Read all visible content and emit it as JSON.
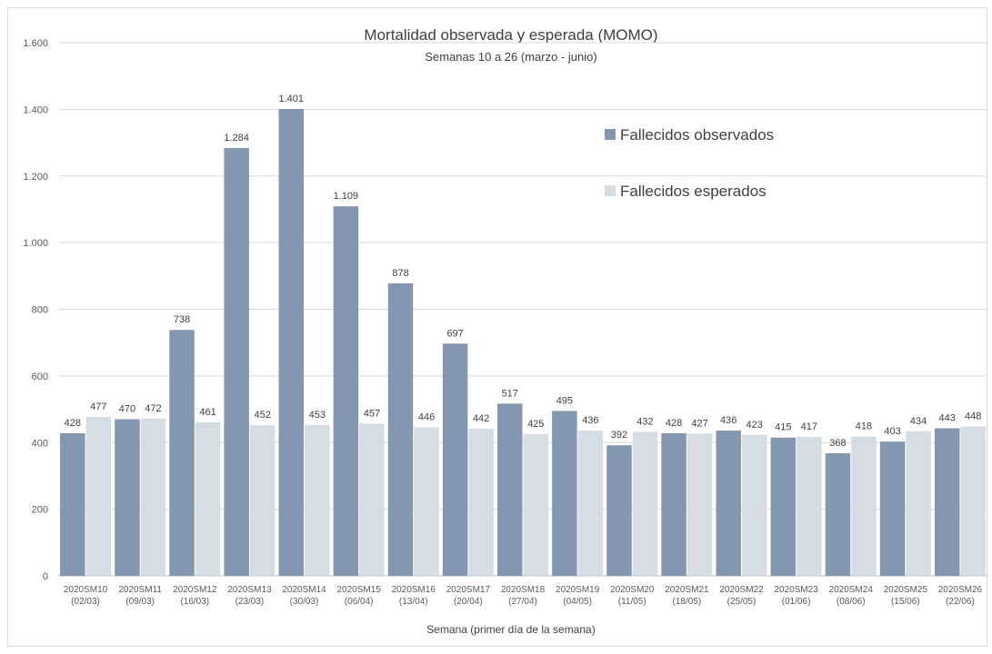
{
  "chart_data": {
    "type": "bar",
    "title": "Mortalidad observada y esperada (MOMO)",
    "subtitle": "Semanas 10 a 26 (marzo - junio)",
    "xlabel": "Semana (primer día de la semana)",
    "ylabel": "",
    "ylim": [
      0,
      1600
    ],
    "yticks": [
      0,
      200,
      400,
      600,
      800,
      1000,
      1200,
      1400,
      1600
    ],
    "ytick_labels": [
      "0",
      "200",
      "400",
      "600",
      "800",
      "1.000",
      "1.200",
      "1.400",
      "1.600"
    ],
    "grid": true,
    "legend_position": "top-right",
    "categories": [
      {
        "week": "2020SM10",
        "date": "(02/03)"
      },
      {
        "week": "2020SM11",
        "date": "(09/03)"
      },
      {
        "week": "2020SM12",
        "date": "(16/03)"
      },
      {
        "week": "2020SM13",
        "date": "(23/03)"
      },
      {
        "week": "2020SM14",
        "date": "(30/03)"
      },
      {
        "week": "2020SM15",
        "date": "(06/04)"
      },
      {
        "week": "2020SM16",
        "date": "(13/04)"
      },
      {
        "week": "2020SM17",
        "date": "(20/04)"
      },
      {
        "week": "2020SM18",
        "date": "(27/04)"
      },
      {
        "week": "2020SM19",
        "date": "(04/05)"
      },
      {
        "week": "2020SM20",
        "date": "(11/05)"
      },
      {
        "week": "2020SM21",
        "date": "(18/05)"
      },
      {
        "week": "2020SM22",
        "date": "(25/05)"
      },
      {
        "week": "2020SM23",
        "date": "(01/06)"
      },
      {
        "week": "2020SM24",
        "date": "(08/06)"
      },
      {
        "week": "2020SM25",
        "date": "(15/06)"
      },
      {
        "week": "2020SM26",
        "date": "(22/06)"
      }
    ],
    "series": [
      {
        "name": "Fallecidos observados",
        "color": "#8497b0",
        "values": [
          428,
          470,
          738,
          1284,
          1401,
          1109,
          878,
          697,
          517,
          495,
          392,
          428,
          436,
          415,
          368,
          403,
          443
        ],
        "labels": [
          "428",
          "470",
          "738",
          "1.284",
          "1.401",
          "1.109",
          "878",
          "697",
          "517",
          "495",
          "392",
          "428",
          "436",
          "415",
          "368",
          "403",
          "443"
        ]
      },
      {
        "name": "Fallecidos esperados",
        "color": "#d6dce4",
        "values": [
          477,
          472,
          461,
          452,
          453,
          457,
          446,
          442,
          425,
          436,
          432,
          427,
          423,
          417,
          418,
          434,
          448
        ],
        "labels": [
          "477",
          "472",
          "461",
          "452",
          "453",
          "457",
          "446",
          "442",
          "425",
          "436",
          "432",
          "427",
          "423",
          "417",
          "418",
          "434",
          "448"
        ]
      }
    ]
  }
}
